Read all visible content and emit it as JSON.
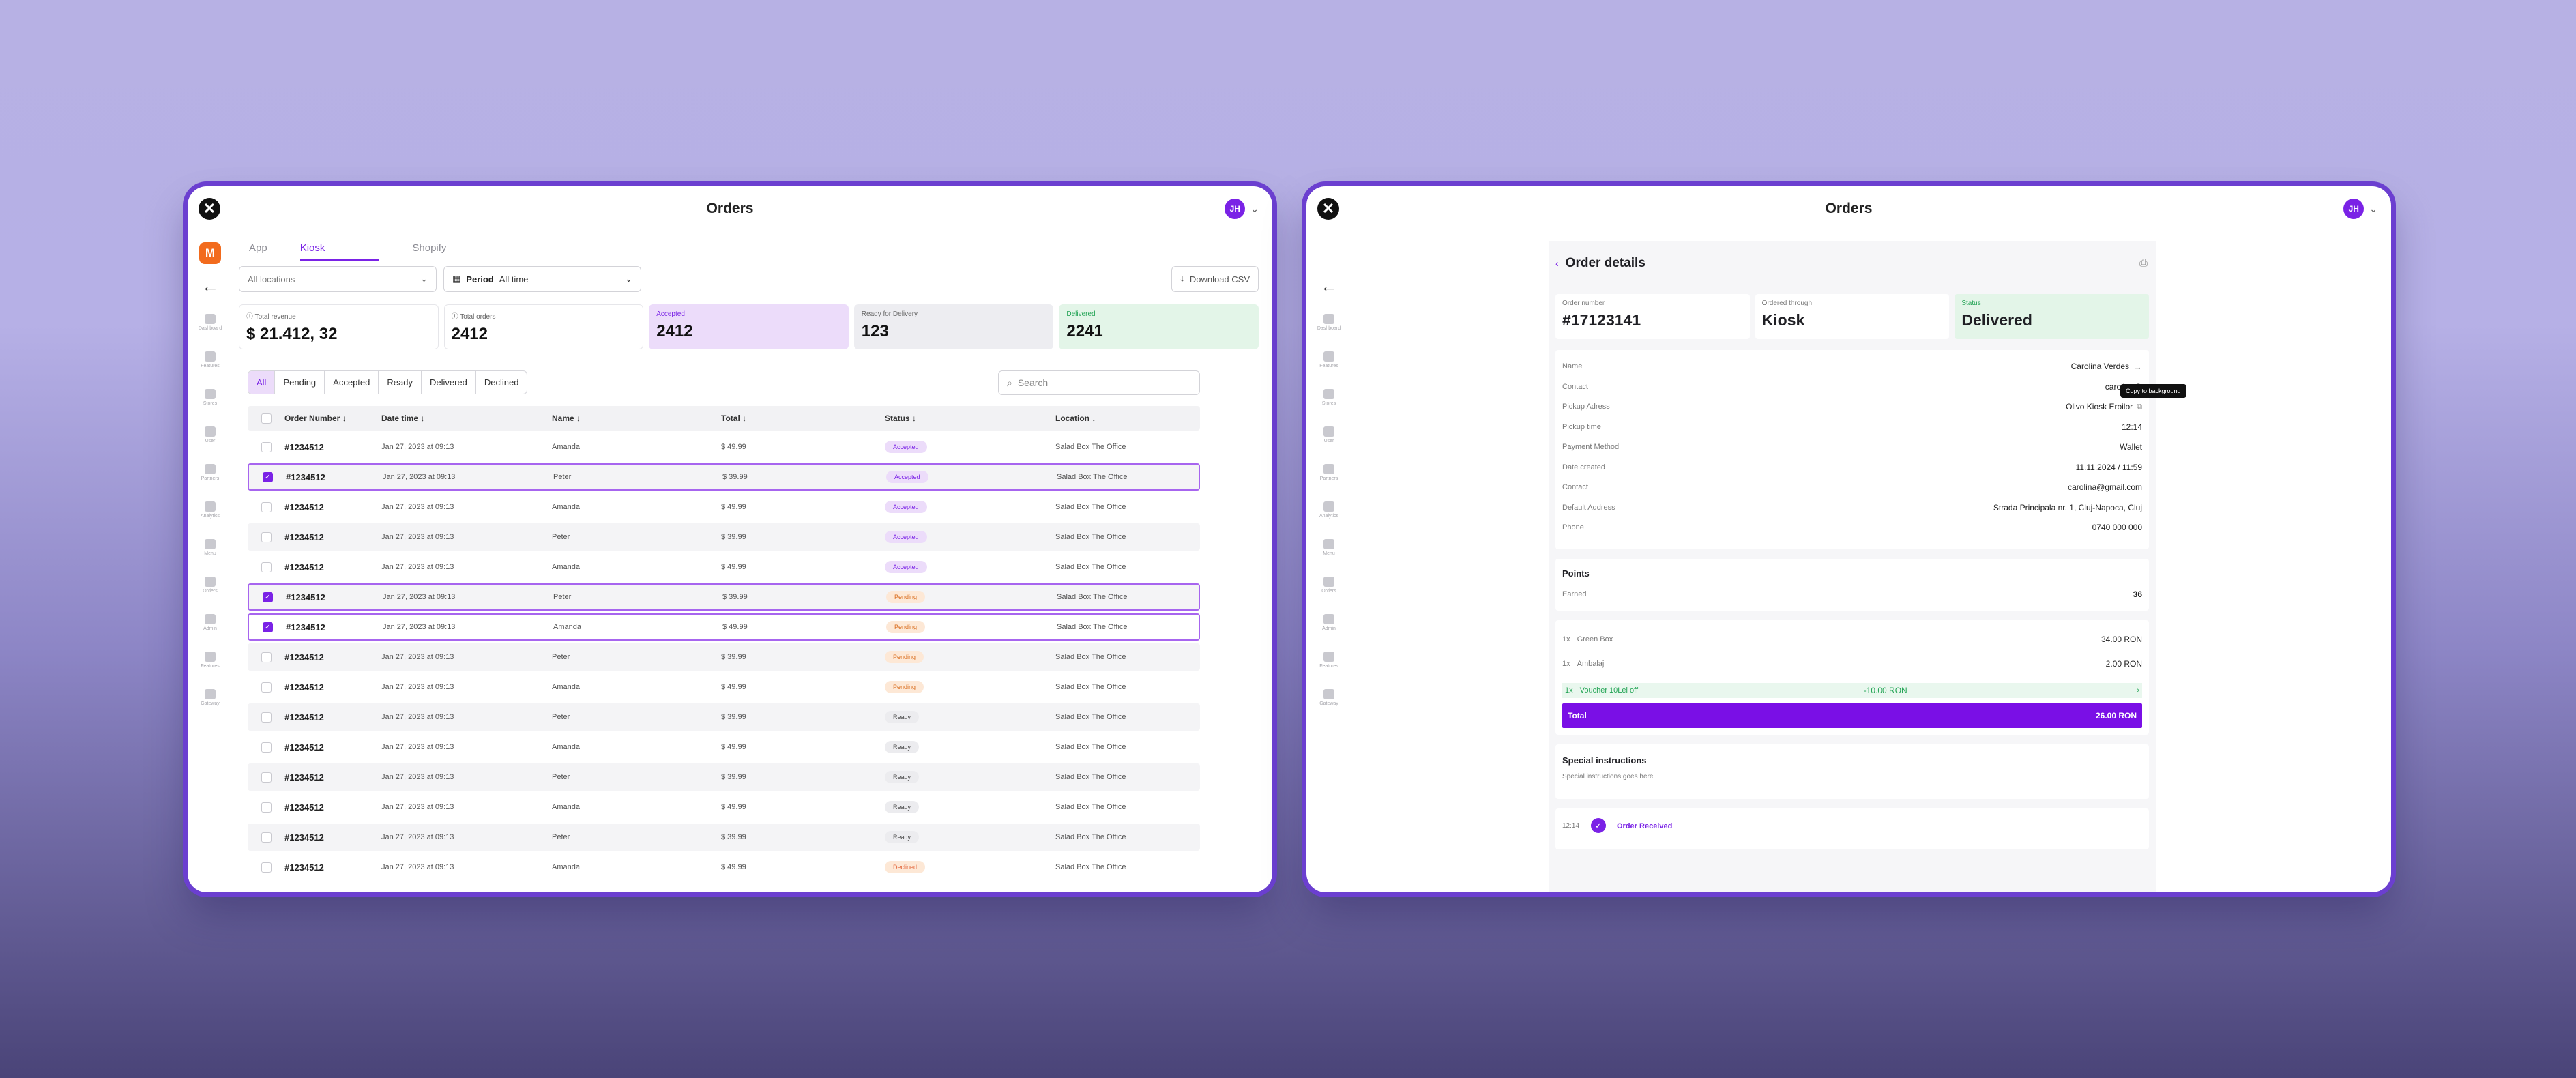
{
  "left_window": {
    "title": "Orders",
    "user_initials": "JH",
    "brand_letter": "M",
    "nav": [
      "Dashboard",
      "Features",
      "Stores",
      "User",
      "Partners",
      "Analytics",
      "Menu",
      "Orders",
      "Admin",
      "Features",
      "Gateway"
    ],
    "tabs": [
      "App",
      "Kiosk",
      "Shopify"
    ],
    "location_placeholder": "All locations",
    "period_label": "Period",
    "period_value": "All time",
    "download_label": "Download CSV",
    "stats": [
      {
        "label": "Total revenue",
        "value": "$ 21.412, 32"
      },
      {
        "label": "Total orders",
        "value": "2412"
      },
      {
        "label": "Accepted",
        "value": "2412"
      },
      {
        "label": "Ready for Delivery",
        "value": "123"
      },
      {
        "label": "Delivered",
        "value": "2241"
      }
    ],
    "filters": [
      "All",
      "Pending",
      "Accepted",
      "Ready",
      "Delivered",
      "Declined"
    ],
    "search_placeholder": "Search",
    "columns": [
      "Order Number",
      "Date time",
      "Name",
      "Total",
      "Status",
      "Location"
    ],
    "rows": [
      {
        "num": "#1234512",
        "date": "Jan 27, 2023 at 09:13",
        "name": "Amanda",
        "total": "$ 49.99",
        "status": "Accepted",
        "loc": "Salad Box The Office"
      },
      {
        "num": "#1234512",
        "date": "Jan 27, 2023 at 09:13",
        "name": "Peter",
        "total": "$ 39.99",
        "status": "Accepted",
        "loc": "Salad Box The Office"
      },
      {
        "num": "#1234512",
        "date": "Jan 27, 2023 at 09:13",
        "name": "Amanda",
        "total": "$ 49.99",
        "status": "Accepted",
        "loc": "Salad Box The Office"
      },
      {
        "num": "#1234512",
        "date": "Jan 27, 2023 at 09:13",
        "name": "Peter",
        "total": "$  39.99",
        "status": "Accepted",
        "loc": "Salad Box The Office"
      },
      {
        "num": "#1234512",
        "date": "Jan 27, 2023 at 09:13",
        "name": "Amanda",
        "total": "$ 49.99",
        "status": "Accepted",
        "loc": "Salad Box The Office"
      },
      {
        "num": "#1234512",
        "date": "Jan 27, 2023 at 09:13",
        "name": "Peter",
        "total": "$ 39.99",
        "status": "Pending",
        "loc": "Salad Box The Office"
      },
      {
        "num": "#1234512",
        "date": "Jan 27, 2023 at 09:13",
        "name": "Amanda",
        "total": "$ 49.99",
        "status": "Pending",
        "loc": "Salad Box The Office"
      },
      {
        "num": "#1234512",
        "date": "Jan 27, 2023 at 09:13",
        "name": "Peter",
        "total": "$ 39.99",
        "status": "Pending",
        "loc": "Salad Box The Office"
      },
      {
        "num": "#1234512",
        "date": "Jan 27, 2023 at 09:13",
        "name": "Amanda",
        "total": "$ 49.99",
        "status": "Pending",
        "loc": "Salad Box The Office"
      },
      {
        "num": "#1234512",
        "date": "Jan 27, 2023 at 09:13",
        "name": "Peter",
        "total": "$ 39.99",
        "status": "Ready",
        "loc": "Salad Box The Office"
      },
      {
        "num": "#1234512",
        "date": "Jan 27, 2023 at 09:13",
        "name": "Amanda",
        "total": "$ 49.99",
        "status": "Ready",
        "loc": "Salad Box The Office"
      },
      {
        "num": "#1234512",
        "date": "Jan 27, 2023 at 09:13",
        "name": "Peter",
        "total": "$ 39.99",
        "status": "Ready",
        "loc": "Salad Box The Office"
      },
      {
        "num": "#1234512",
        "date": "Jan 27, 2023 at 09:13",
        "name": "Amanda",
        "total": "$ 49.99",
        "status": "Ready",
        "loc": "Salad Box The Office"
      },
      {
        "num": "#1234512",
        "date": "Jan 27, 2023 at 09:13",
        "name": "Peter",
        "total": "$ 39.99",
        "status": "Ready",
        "loc": "Salad Box The Office"
      },
      {
        "num": "#1234512",
        "date": "Jan 27, 2023 at 09:13",
        "name": "Amanda",
        "total": "$ 49.99",
        "status": "Declined",
        "loc": "Salad Box The Office"
      }
    ]
  },
  "right_window": {
    "title": "Orders",
    "user_initials": "JH",
    "panel_title": "Order details",
    "summary": [
      {
        "label": "Order number",
        "value": "#17123141"
      },
      {
        "label": "Ordered through",
        "value": "Kiosk"
      },
      {
        "label": "Status",
        "value": "Delivered"
      }
    ],
    "details": [
      {
        "label": "Name",
        "value": "Carolina Verdes"
      },
      {
        "label": "Contact",
        "value": "carolina@"
      },
      {
        "label": "Pickup Adress",
        "value": "Olivo Kiosk Eroilor"
      },
      {
        "label": "Pickup time",
        "value": "12:14"
      },
      {
        "label": "Payment Method",
        "value": "Wallet"
      },
      {
        "label": "Date created",
        "value": "11.11.2024 / 11:59"
      },
      {
        "label": "Contact",
        "value": "carolina@gmail.com"
      },
      {
        "label": "Default Address",
        "value": "Strada Principala nr. 1, Cluj-Napoca, Cluj"
      },
      {
        "label": "Phone",
        "value": "0740 000 000"
      }
    ],
    "tooltip": "Copy to background",
    "points_title": "Points",
    "points_label": "Earned",
    "points_value": "36",
    "items": [
      {
        "qty": "1x",
        "name": "Green Box",
        "price": "34.00 RON"
      },
      {
        "qty": "1x",
        "name": "Ambalaj",
        "price": "2.00 RON"
      },
      {
        "qty": "1x",
        "name": "Voucher 10Lei off",
        "price": "-10.00 RON"
      }
    ],
    "total_label": "Total",
    "total_value": "26.00 RON",
    "instructions_title": "Special instructions",
    "instructions_text": "Special instructions goes here",
    "timeline_time": "12:14",
    "timeline_label": "Order Received"
  },
  "colors": {
    "accent": "#7a22e6",
    "frame": "#6b3fd0",
    "brand": "#f26b1d"
  }
}
